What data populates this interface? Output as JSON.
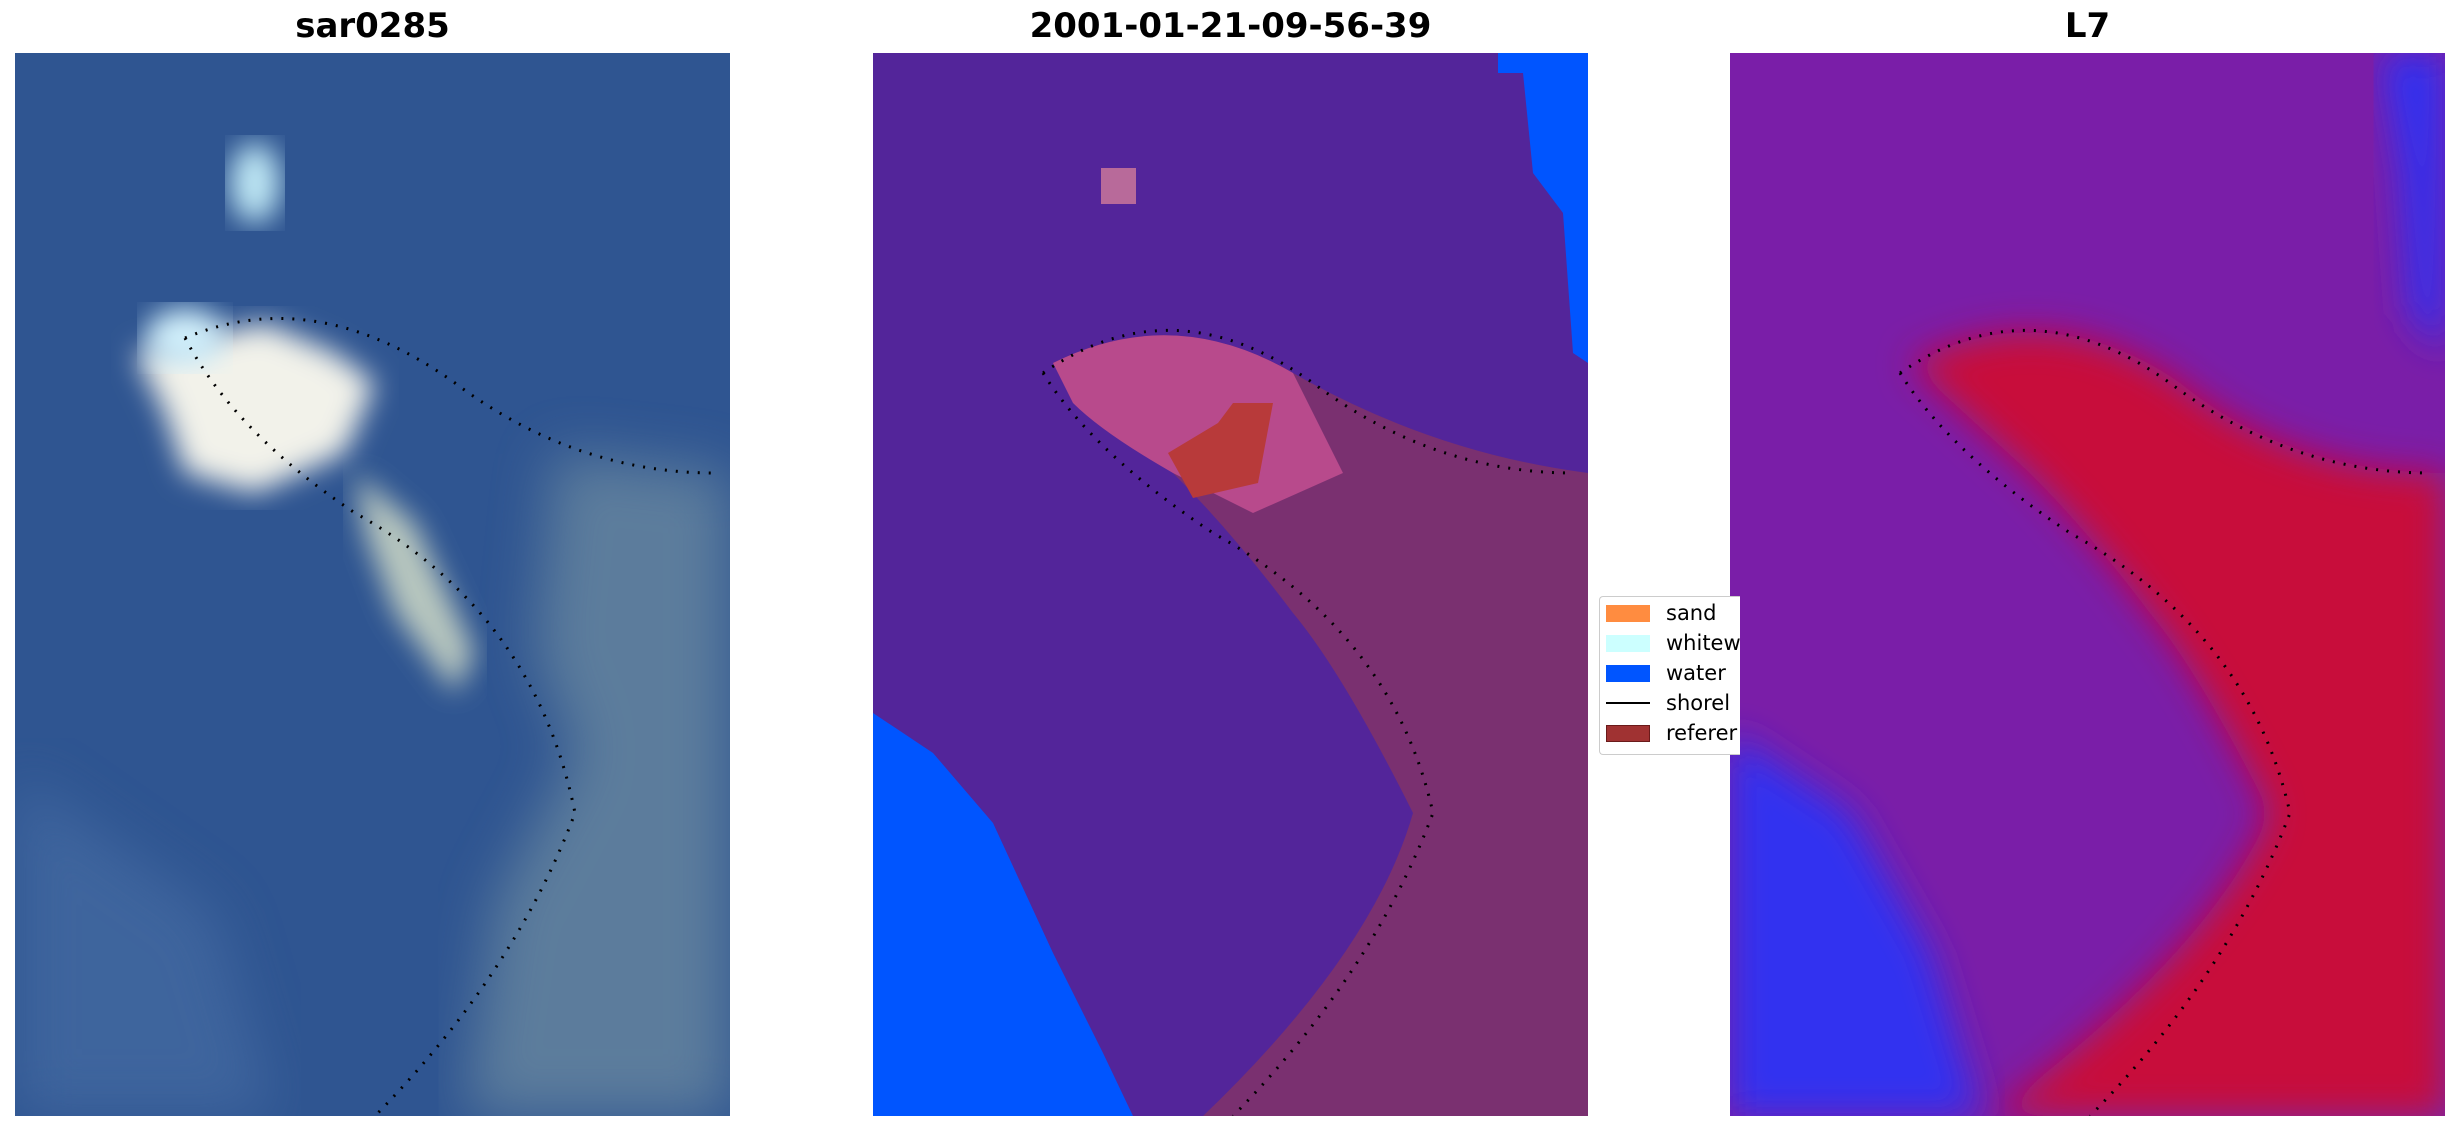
{
  "panels": [
    {
      "title": "sar0285"
    },
    {
      "title": "2001-01-21-09-56-39"
    },
    {
      "title": "L7"
    }
  ],
  "legend": {
    "items": [
      {
        "label": "sand",
        "color": "#ff8c40"
      },
      {
        "label": "whitew",
        "color": "#ccffff"
      },
      {
        "label": "water",
        "color": "#0055ff"
      },
      {
        "label": "shorel",
        "color": "#000000"
      },
      {
        "label": "referer",
        "color": "#a03232"
      }
    ]
  },
  "colors": {
    "rgb_water": "#2f5591",
    "rgb_foam": "#f2f2ea",
    "class_land": "#53259a",
    "class_water": "#0055ff",
    "class_sand_overlay": "#b84a8c",
    "class_reference": "#b83a3a",
    "index_background": "#7a1ea8",
    "index_high": "#c8103a",
    "index_low": "#3030f0"
  }
}
